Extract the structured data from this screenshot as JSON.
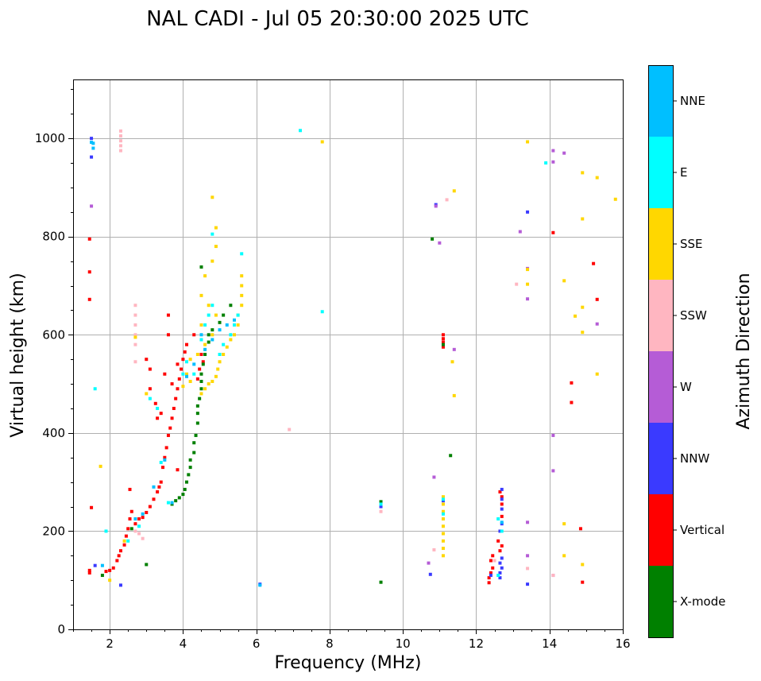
{
  "chart_data": {
    "type": "scatter",
    "title": "NAL CADI - Jul 05 20:30:00 2025 UTC",
    "xlabel": "Frequency (MHz)",
    "ylabel": "Virtual height (km)",
    "xlim": [
      1,
      16
    ],
    "ylim": [
      0,
      1120
    ],
    "xticks": [
      2,
      4,
      6,
      8,
      10,
      12,
      14,
      16
    ],
    "yticks": [
      0,
      200,
      400,
      600,
      800,
      1000
    ],
    "grid": true,
    "colorbar": {
      "title": "Azimuth Direction",
      "categories": [
        {
          "name": "X-mode",
          "color": "#008000"
        },
        {
          "name": "Vertical",
          "color": "#ff0000"
        },
        {
          "name": "NNW",
          "color": "#3a3aff"
        },
        {
          "name": "W",
          "color": "#b55cd6"
        },
        {
          "name": "SSW",
          "color": "#ffb6c1"
        },
        {
          "name": "SSE",
          "color": "#ffd700"
        },
        {
          "name": "E",
          "color": "#00ffff"
        },
        {
          "name": "NNE",
          "color": "#00bfff"
        }
      ]
    },
    "series": [
      {
        "name": "Vertical",
        "points": [
          [
            1.45,
            120
          ],
          [
            1.45,
            115
          ],
          [
            1.5,
            248
          ],
          [
            1.45,
            672
          ],
          [
            1.45,
            728
          ],
          [
            1.45,
            795
          ],
          [
            1.9,
            118
          ],
          [
            2.0,
            120
          ],
          [
            2.1,
            125
          ],
          [
            2.2,
            140
          ],
          [
            2.25,
            150
          ],
          [
            2.3,
            160
          ],
          [
            2.4,
            172
          ],
          [
            2.45,
            190
          ],
          [
            2.5,
            205
          ],
          [
            2.55,
            225
          ],
          [
            2.6,
            240
          ],
          [
            2.55,
            285
          ],
          [
            2.7,
            215
          ],
          [
            2.8,
            225
          ],
          [
            2.9,
            228
          ],
          [
            3.0,
            238
          ],
          [
            3.1,
            250
          ],
          [
            3.2,
            265
          ],
          [
            3.3,
            280
          ],
          [
            3.35,
            290
          ],
          [
            3.4,
            300
          ],
          [
            3.45,
            330
          ],
          [
            3.5,
            350
          ],
          [
            3.55,
            370
          ],
          [
            3.6,
            395
          ],
          [
            3.65,
            410
          ],
          [
            3.7,
            430
          ],
          [
            3.75,
            450
          ],
          [
            3.8,
            470
          ],
          [
            3.85,
            490
          ],
          [
            3.9,
            510
          ],
          [
            3.95,
            530
          ],
          [
            4.0,
            550
          ],
          [
            4.05,
            565
          ],
          [
            4.1,
            580
          ],
          [
            3.6,
            640
          ],
          [
            3.6,
            600
          ],
          [
            3.7,
            500
          ],
          [
            3.85,
            540
          ],
          [
            3.5,
            520
          ],
          [
            3.0,
            550
          ],
          [
            3.1,
            530
          ],
          [
            3.1,
            490
          ],
          [
            3.25,
            460
          ],
          [
            3.3,
            430
          ],
          [
            3.4,
            440
          ],
          [
            4.4,
            510
          ],
          [
            4.45,
            530
          ],
          [
            4.5,
            560
          ],
          [
            4.3,
            600
          ],
          [
            4.55,
            545
          ],
          [
            3.85,
            325
          ],
          [
            11.1,
            600
          ],
          [
            11.1,
            592
          ],
          [
            11.1,
            585
          ],
          [
            11.1,
            575
          ],
          [
            12.35,
            95
          ],
          [
            12.35,
            105
          ],
          [
            12.4,
            115
          ],
          [
            12.45,
            125
          ],
          [
            12.4,
            140
          ],
          [
            12.45,
            150
          ],
          [
            12.7,
            170
          ],
          [
            12.65,
            160
          ],
          [
            12.6,
            180
          ],
          [
            12.7,
            230
          ],
          [
            12.7,
            255
          ],
          [
            12.7,
            270
          ],
          [
            12.65,
            280
          ],
          [
            14.1,
            808
          ],
          [
            14.6,
            462
          ],
          [
            14.6,
            502
          ],
          [
            14.85,
            205
          ],
          [
            14.9,
            96
          ],
          [
            15.3,
            672
          ],
          [
            15.2,
            745
          ]
        ]
      },
      {
        "name": "X-mode",
        "points": [
          [
            1.8,
            110
          ],
          [
            2.6,
            205
          ],
          [
            3.7,
            255
          ],
          [
            3.8,
            262
          ],
          [
            3.9,
            268
          ],
          [
            4.0,
            275
          ],
          [
            4.05,
            285
          ],
          [
            4.1,
            300
          ],
          [
            4.15,
            315
          ],
          [
            4.2,
            330
          ],
          [
            4.2,
            345
          ],
          [
            4.3,
            360
          ],
          [
            4.3,
            380
          ],
          [
            4.35,
            395
          ],
          [
            4.4,
            420
          ],
          [
            4.4,
            440
          ],
          [
            4.4,
            455
          ],
          [
            4.45,
            470
          ],
          [
            4.5,
            490
          ],
          [
            4.5,
            505
          ],
          [
            4.5,
            520
          ],
          [
            4.55,
            540
          ],
          [
            4.6,
            560
          ],
          [
            4.7,
            585
          ],
          [
            4.7,
            600
          ],
          [
            4.8,
            610
          ],
          [
            5.0,
            625
          ],
          [
            5.1,
            640
          ],
          [
            5.3,
            660
          ],
          [
            3.0,
            132
          ],
          [
            4.5,
            738
          ],
          [
            9.4,
            96
          ],
          [
            9.4,
            260
          ],
          [
            10.8,
            795
          ],
          [
            11.1,
            580
          ],
          [
            11.3,
            354
          ]
        ]
      },
      {
        "name": "NNW",
        "points": [
          [
            1.5,
            962
          ],
          [
            1.5,
            1000
          ],
          [
            1.6,
            130
          ],
          [
            2.3,
            90
          ],
          [
            6.1,
            92
          ],
          [
            9.4,
            250
          ],
          [
            10.75,
            112
          ],
          [
            10.9,
            865
          ],
          [
            11.1,
            262
          ],
          [
            12.4,
            110
          ],
          [
            12.65,
            105
          ],
          [
            12.65,
            115
          ],
          [
            12.7,
            125
          ],
          [
            12.65,
            135
          ],
          [
            12.7,
            145
          ],
          [
            12.65,
            200
          ],
          [
            12.7,
            215
          ],
          [
            12.7,
            245
          ],
          [
            12.7,
            265
          ],
          [
            12.7,
            285
          ],
          [
            13.4,
            92
          ],
          [
            13.4,
            850
          ]
        ]
      },
      {
        "name": "W",
        "points": [
          [
            1.5,
            862
          ],
          [
            10.7,
            135
          ],
          [
            10.85,
            310
          ],
          [
            10.9,
            862
          ],
          [
            11.0,
            787
          ],
          [
            11.4,
            570
          ],
          [
            13.2,
            810
          ],
          [
            13.4,
            218
          ],
          [
            13.4,
            150
          ],
          [
            13.4,
            673
          ],
          [
            13.4,
            735
          ],
          [
            14.1,
            110
          ],
          [
            14.1,
            323
          ],
          [
            14.1,
            395
          ],
          [
            14.1,
            975
          ],
          [
            14.1,
            952
          ],
          [
            14.4,
            970
          ],
          [
            15.3,
            622
          ]
        ]
      },
      {
        "name": "SSW",
        "points": [
          [
            2.3,
            975
          ],
          [
            2.3,
            985
          ],
          [
            2.3,
            995
          ],
          [
            2.3,
            1005
          ],
          [
            2.3,
            1015
          ],
          [
            2.7,
            580
          ],
          [
            2.7,
            600
          ],
          [
            2.7,
            620
          ],
          [
            2.7,
            640
          ],
          [
            2.7,
            660
          ],
          [
            2.7,
            545
          ],
          [
            2.7,
            200
          ],
          [
            2.8,
            195
          ],
          [
            2.9,
            185
          ],
          [
            6.9,
            407
          ],
          [
            9.4,
            240
          ],
          [
            10.85,
            162
          ],
          [
            11.2,
            875
          ],
          [
            12.5,
            140
          ],
          [
            13.1,
            703
          ],
          [
            13.4,
            124
          ],
          [
            14.1,
            110
          ]
        ]
      },
      {
        "name": "SSE",
        "points": [
          [
            2.0,
            100
          ],
          [
            2.4,
            180
          ],
          [
            2.7,
            595
          ],
          [
            3.0,
            480
          ],
          [
            4.0,
            495
          ],
          [
            4.2,
            505
          ],
          [
            4.5,
            480
          ],
          [
            4.6,
            490
          ],
          [
            4.7,
            500
          ],
          [
            4.8,
            505
          ],
          [
            4.9,
            515
          ],
          [
            4.95,
            530
          ],
          [
            5.0,
            545
          ],
          [
            5.1,
            560
          ],
          [
            5.2,
            575
          ],
          [
            5.3,
            590
          ],
          [
            5.4,
            600
          ],
          [
            5.5,
            620
          ],
          [
            5.5,
            640
          ],
          [
            5.6,
            660
          ],
          [
            5.6,
            680
          ],
          [
            5.6,
            700
          ],
          [
            5.6,
            720
          ],
          [
            4.8,
            880
          ],
          [
            4.9,
            818
          ],
          [
            4.9,
            780
          ],
          [
            4.8,
            750
          ],
          [
            4.6,
            720
          ],
          [
            4.5,
            680
          ],
          [
            4.7,
            660
          ],
          [
            4.9,
            640
          ],
          [
            4.5,
            620
          ],
          [
            4.8,
            600
          ],
          [
            4.6,
            580
          ],
          [
            4.4,
            560
          ],
          [
            4.2,
            550
          ],
          [
            4.1,
            520
          ],
          [
            1.75,
            332
          ],
          [
            7.8,
            993
          ],
          [
            11.1,
            150
          ],
          [
            11.1,
            165
          ],
          [
            11.1,
            180
          ],
          [
            11.1,
            195
          ],
          [
            11.1,
            210
          ],
          [
            11.1,
            225
          ],
          [
            11.1,
            240
          ],
          [
            11.1,
            255
          ],
          [
            11.1,
            270
          ],
          [
            11.35,
            545
          ],
          [
            11.4,
            476
          ],
          [
            11.4,
            893
          ],
          [
            13.4,
            993
          ],
          [
            13.4,
            703
          ],
          [
            13.4,
            733
          ],
          [
            14.4,
            150
          ],
          [
            14.4,
            215
          ],
          [
            14.4,
            710
          ],
          [
            14.7,
            638
          ],
          [
            14.9,
            132
          ],
          [
            14.9,
            605
          ],
          [
            14.9,
            656
          ],
          [
            14.9,
            836
          ],
          [
            14.9,
            930
          ],
          [
            15.3,
            520
          ],
          [
            15.3,
            920
          ],
          [
            15.8,
            876
          ]
        ]
      },
      {
        "name": "E",
        "points": [
          [
            1.6,
            490
          ],
          [
            1.9,
            200
          ],
          [
            2.5,
            180
          ],
          [
            2.8,
            210
          ],
          [
            3.1,
            470
          ],
          [
            3.3,
            450
          ],
          [
            3.4,
            340
          ],
          [
            3.6,
            258
          ],
          [
            4.0,
            520
          ],
          [
            4.1,
            545
          ],
          [
            4.3,
            520
          ],
          [
            4.5,
            590
          ],
          [
            4.6,
            620
          ],
          [
            4.7,
            640
          ],
          [
            4.8,
            660
          ],
          [
            5.0,
            560
          ],
          [
            5.1,
            580
          ],
          [
            5.3,
            600
          ],
          [
            5.4,
            620
          ],
          [
            5.5,
            640
          ],
          [
            5.6,
            765
          ],
          [
            4.8,
            805
          ],
          [
            7.2,
            1016
          ],
          [
            7.8,
            647
          ],
          [
            9.4,
            255
          ],
          [
            11.1,
            235
          ],
          [
            11.1,
            265
          ],
          [
            12.6,
            110
          ],
          [
            12.6,
            225
          ],
          [
            12.7,
            200
          ],
          [
            13.9,
            950
          ]
        ]
      },
      {
        "name": "NNE",
        "points": [
          [
            1.55,
            980
          ],
          [
            1.55,
            990
          ],
          [
            1.5,
            992
          ],
          [
            1.8,
            130
          ],
          [
            2.7,
            225
          ],
          [
            2.9,
            235
          ],
          [
            3.2,
            290
          ],
          [
            3.5,
            345
          ],
          [
            3.7,
            258
          ],
          [
            4.1,
            515
          ],
          [
            4.3,
            540
          ],
          [
            4.5,
            600
          ],
          [
            4.6,
            570
          ],
          [
            4.8,
            590
          ],
          [
            5.0,
            610
          ],
          [
            5.2,
            620
          ],
          [
            5.4,
            630
          ],
          [
            6.1,
            90
          ],
          [
            12.7,
            218
          ]
        ]
      }
    ]
  }
}
